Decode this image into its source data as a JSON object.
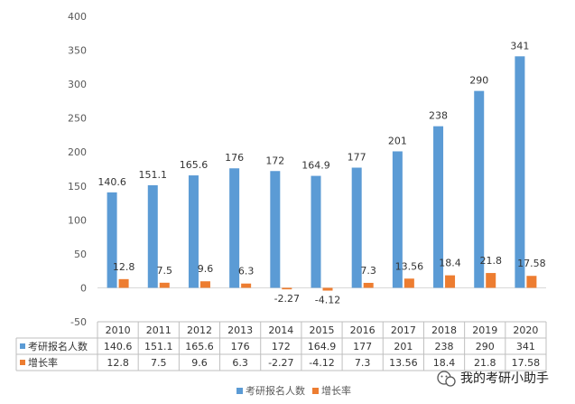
{
  "chart_data": {
    "type": "bar",
    "categories": [
      "2010",
      "2011",
      "2012",
      "2013",
      "2014",
      "2015",
      "2016",
      "2017",
      "2018",
      "2019",
      "2020"
    ],
    "series": [
      {
        "name": "考研报名人数",
        "color": "#5B9BD5",
        "values": [
          140.6,
          151.1,
          165.6,
          176,
          172,
          164.9,
          177,
          201,
          238,
          290,
          341
        ],
        "labels": [
          "140.6",
          "151.1",
          "165.6",
          "176",
          "172",
          "164.9",
          "177",
          "201",
          "238",
          "290",
          "341"
        ]
      },
      {
        "name": "增长率",
        "color": "#ED7D31",
        "values": [
          12.8,
          7.5,
          9.6,
          6.3,
          -2.27,
          -4.12,
          7.3,
          13.56,
          18.4,
          21.8,
          17.58
        ],
        "labels": [
          "12.8",
          "7.5",
          "9.6",
          "6.3",
          "-2.27",
          "-4.12",
          "7.3",
          "13.56",
          "18.4",
          "21.8",
          "17.58"
        ]
      }
    ],
    "ylim": [
      -50,
      400
    ],
    "yticks": [
      "400",
      "350",
      "300",
      "250",
      "200",
      "150",
      "100",
      "50",
      "0",
      "-50"
    ],
    "grid": false,
    "data_table": true,
    "legend_position": "bottom"
  },
  "watermark": {
    "text": "我的考研小助手",
    "icon": "wechat-icon"
  }
}
